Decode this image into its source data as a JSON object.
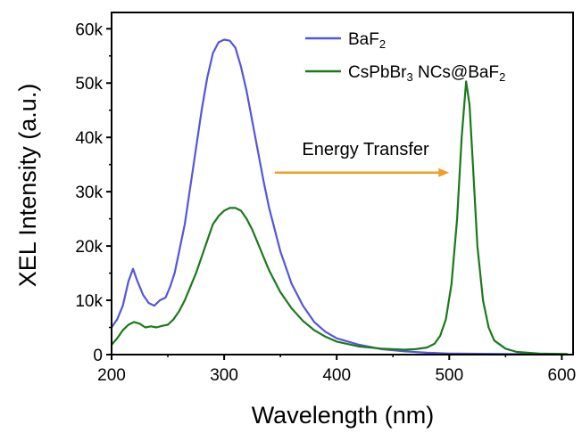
{
  "chart_data": {
    "type": "line",
    "xlabel": "Wavelength (nm)",
    "ylabel": "XEL Intensity (a.u.)",
    "xlim": [
      200,
      610
    ],
    "ylim": [
      0,
      63000
    ],
    "xticks": [
      200,
      300,
      400,
      500,
      600
    ],
    "xtick_labels": [
      "200",
      "300",
      "400",
      "500",
      "600"
    ],
    "yticks": [
      0,
      10000,
      20000,
      30000,
      40000,
      50000,
      60000
    ],
    "ytick_labels": [
      "0",
      "10k",
      "20k",
      "30k",
      "40k",
      "50k",
      "60k"
    ],
    "grid": false,
    "legend_position": "top-right",
    "series": [
      {
        "name": "BaF2",
        "color": "#5555dd",
        "points": [
          [
            200,
            5000
          ],
          [
            205,
            6500
          ],
          [
            210,
            9000
          ],
          [
            215,
            13500
          ],
          [
            219,
            15800
          ],
          [
            223,
            13500
          ],
          [
            228,
            11000
          ],
          [
            233,
            9500
          ],
          [
            238,
            9000
          ],
          [
            243,
            10000
          ],
          [
            248,
            10500
          ],
          [
            252,
            12500
          ],
          [
            256,
            15000
          ],
          [
            260,
            19000
          ],
          [
            265,
            24000
          ],
          [
            270,
            31000
          ],
          [
            275,
            38000
          ],
          [
            280,
            45000
          ],
          [
            285,
            51000
          ],
          [
            290,
            55500
          ],
          [
            295,
            57500
          ],
          [
            300,
            58000
          ],
          [
            305,
            57800
          ],
          [
            310,
            56500
          ],
          [
            315,
            53000
          ],
          [
            320,
            48500
          ],
          [
            325,
            43000
          ],
          [
            330,
            37500
          ],
          [
            335,
            32000
          ],
          [
            340,
            27000
          ],
          [
            350,
            19000
          ],
          [
            360,
            13000
          ],
          [
            370,
            9000
          ],
          [
            380,
            6000
          ],
          [
            390,
            4200
          ],
          [
            400,
            3000
          ],
          [
            420,
            1800
          ],
          [
            440,
            1000
          ],
          [
            460,
            600
          ],
          [
            480,
            350
          ],
          [
            500,
            200
          ],
          [
            550,
            100
          ],
          [
            605,
            50
          ]
        ]
      },
      {
        "name": "CsPbBr3 NCs@BaF2",
        "color": "#1a7a1a",
        "points": [
          [
            200,
            1800
          ],
          [
            205,
            3000
          ],
          [
            210,
            4500
          ],
          [
            215,
            5500
          ],
          [
            220,
            6000
          ],
          [
            225,
            5700
          ],
          [
            230,
            5000
          ],
          [
            235,
            5200
          ],
          [
            240,
            5000
          ],
          [
            245,
            5300
          ],
          [
            250,
            5500
          ],
          [
            255,
            6500
          ],
          [
            260,
            8000
          ],
          [
            265,
            10000
          ],
          [
            270,
            12500
          ],
          [
            275,
            15000
          ],
          [
            280,
            18000
          ],
          [
            285,
            21000
          ],
          [
            290,
            24000
          ],
          [
            295,
            25500
          ],
          [
            300,
            26500
          ],
          [
            305,
            27000
          ],
          [
            310,
            27000
          ],
          [
            315,
            26500
          ],
          [
            320,
            25000
          ],
          [
            325,
            23000
          ],
          [
            330,
            20500
          ],
          [
            335,
            18000
          ],
          [
            340,
            15500
          ],
          [
            350,
            11500
          ],
          [
            360,
            8500
          ],
          [
            370,
            6200
          ],
          [
            380,
            4500
          ],
          [
            390,
            3300
          ],
          [
            400,
            2400
          ],
          [
            420,
            1500
          ],
          [
            440,
            1100
          ],
          [
            460,
            900
          ],
          [
            470,
            1000
          ],
          [
            480,
            1300
          ],
          [
            487,
            2000
          ],
          [
            492,
            3500
          ],
          [
            497,
            6500
          ],
          [
            502,
            13000
          ],
          [
            507,
            25000
          ],
          [
            511,
            40000
          ],
          [
            515,
            50300
          ],
          [
            518,
            46000
          ],
          [
            521,
            35000
          ],
          [
            525,
            20000
          ],
          [
            530,
            10000
          ],
          [
            535,
            5000
          ],
          [
            540,
            2600
          ],
          [
            550,
            1100
          ],
          [
            560,
            500
          ],
          [
            580,
            200
          ],
          [
            605,
            100
          ]
        ]
      }
    ],
    "annotations": [
      {
        "text": "Energy Transfer",
        "arrow_from": [
          345,
          33500
        ],
        "arrow_to": [
          500,
          33500
        ],
        "color": "#f0a020"
      }
    ]
  },
  "legend": [
    {
      "base": "BaF",
      "sub": "2",
      "tail": "",
      "sub2": ""
    },
    {
      "base": "CsPbBr",
      "sub": "3",
      "tail": " NCs@BaF",
      "sub2": "2"
    }
  ]
}
